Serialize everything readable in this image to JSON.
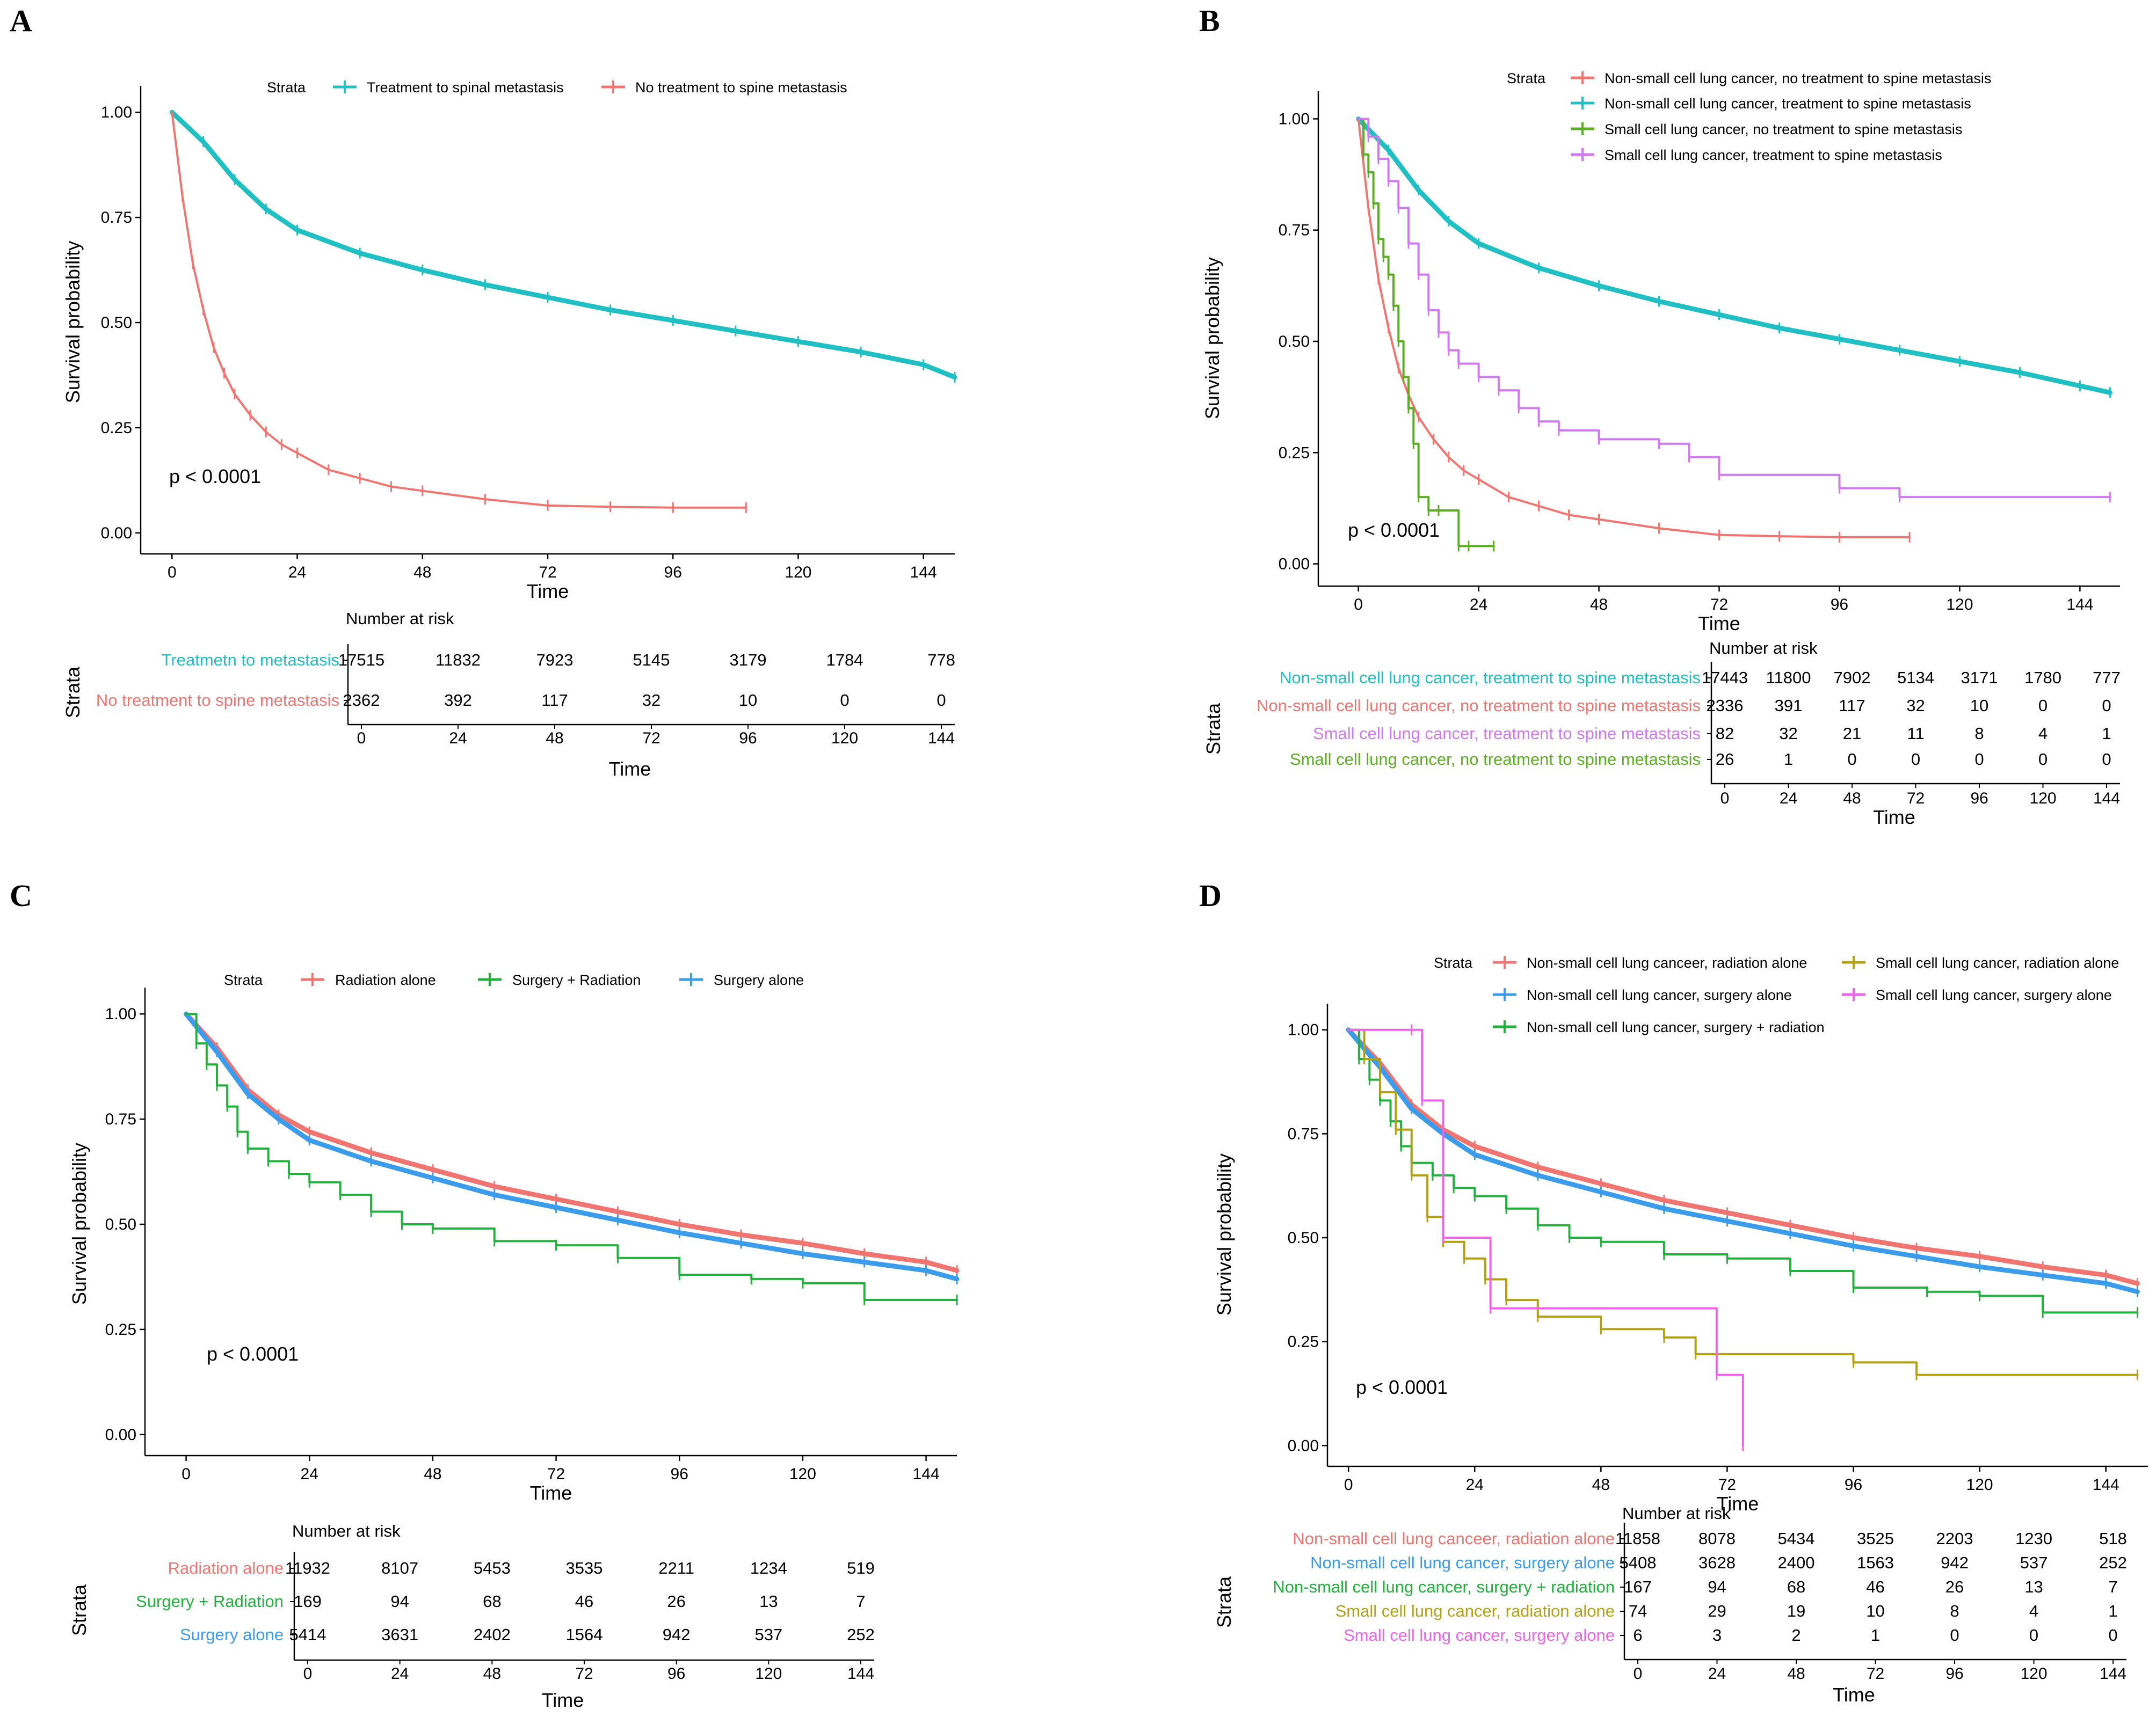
{
  "figure": {
    "description_free": true
  },
  "chart_data": [
    {
      "panel": "A",
      "type": "line",
      "title": "",
      "xlabel": "Time",
      "ylabel": "Survival probability",
      "x_ticks": [
        0,
        24,
        48,
        72,
        96,
        120,
        144
      ],
      "y_ticks": [
        "0.00",
        "0.25",
        "0.50",
        "0.75",
        "1.00"
      ],
      "xlim": [
        -6,
        150
      ],
      "ylim": [
        -0.05,
        1.05
      ],
      "pvalue": "p < 0.0001",
      "legend_title": "Strata",
      "series": [
        {
          "name": "Treatment to spinal metastasis",
          "color": "#1FBFC3",
          "width": 9,
          "x": [
            0,
            6,
            12,
            18,
            24,
            36,
            48,
            60,
            72,
            84,
            96,
            108,
            120,
            132,
            144,
            150
          ],
          "y": [
            1.0,
            0.93,
            0.84,
            0.77,
            0.72,
            0.665,
            0.625,
            0.59,
            0.56,
            0.53,
            0.505,
            0.48,
            0.455,
            0.43,
            0.4,
            0.37
          ]
        },
        {
          "name": "No treatment to spine metastasis",
          "color": "#F07470",
          "width": 4,
          "x": [
            0,
            2,
            4,
            6,
            8,
            10,
            12,
            15,
            18,
            21,
            24,
            30,
            36,
            42,
            48,
            60,
            72,
            84,
            96,
            110
          ],
          "y": [
            1.0,
            0.8,
            0.64,
            0.53,
            0.44,
            0.38,
            0.33,
            0.28,
            0.24,
            0.21,
            0.19,
            0.15,
            0.13,
            0.11,
            0.1,
            0.08,
            0.065,
            0.062,
            0.06,
            0.06
          ]
        }
      ],
      "risk_table": {
        "title": "Number at risk",
        "ylabel": "Strata",
        "xlabel": "Time",
        "rows": [
          {
            "label": "Treatmetn to metastasis",
            "color": "#1FBFC3",
            "values": [
              "17515",
              "11832",
              "7923",
              "5145",
              "3179",
              "1784",
              "778"
            ]
          },
          {
            "label": "No treatment to spine metastasis",
            "color": "#F07470",
            "values": [
              "2362",
              "392",
              "117",
              "32",
              "10",
              "0",
              "0"
            ]
          }
        ]
      }
    },
    {
      "panel": "B",
      "type": "line",
      "title": "",
      "xlabel": "Time",
      "ylabel": "Survival probability",
      "x_ticks": [
        0,
        24,
        48,
        72,
        96,
        120,
        144
      ],
      "y_ticks": [
        "0.00",
        "0.25",
        "0.50",
        "0.75",
        "1.00"
      ],
      "xlim": [
        -8,
        152
      ],
      "ylim": [
        -0.05,
        1.05
      ],
      "pvalue": "p < 0.0001",
      "legend_title": "Strata",
      "series": [
        {
          "name": "Non-small cell lung cancer, no treatment to spine metastasis",
          "color": "#F07470",
          "width": 4,
          "x": [
            0,
            2,
            4,
            6,
            8,
            10,
            12,
            15,
            18,
            21,
            24,
            30,
            36,
            42,
            48,
            60,
            72,
            84,
            96,
            110
          ],
          "y": [
            1.0,
            0.8,
            0.64,
            0.53,
            0.44,
            0.38,
            0.33,
            0.28,
            0.24,
            0.21,
            0.19,
            0.15,
            0.13,
            0.11,
            0.1,
            0.08,
            0.065,
            0.062,
            0.06,
            0.06
          ]
        },
        {
          "name": "Non-small cell lung cancer, treatment to spine metastasis",
          "color": "#1FBFC3",
          "width": 9,
          "x": [
            0,
            6,
            12,
            18,
            24,
            36,
            48,
            60,
            72,
            84,
            96,
            108,
            120,
            132,
            144,
            150
          ],
          "y": [
            1.0,
            0.93,
            0.84,
            0.77,
            0.72,
            0.665,
            0.625,
            0.59,
            0.56,
            0.53,
            0.505,
            0.48,
            0.455,
            0.43,
            0.4,
            0.385
          ]
        },
        {
          "name": "Small cell lung cancer, no treatment to spine metastasis",
          "color": "#5BAE21",
          "width": 4,
          "step": true,
          "x": [
            0,
            1,
            2,
            3,
            4,
            5,
            6,
            7,
            8,
            9,
            10,
            11,
            12,
            14,
            16,
            20,
            22,
            27
          ],
          "y": [
            1.0,
            0.92,
            0.88,
            0.81,
            0.73,
            0.69,
            0.65,
            0.58,
            0.5,
            0.42,
            0.35,
            0.27,
            0.15,
            0.12,
            0.12,
            0.04,
            0.04,
            0.04
          ]
        },
        {
          "name": "Small cell lung cancer, treatment to spine metastasis",
          "color": "#CF78F0",
          "width": 4,
          "step": true,
          "x": [
            0,
            2,
            4,
            6,
            8,
            10,
            12,
            14,
            16,
            18,
            20,
            24,
            28,
            32,
            36,
            40,
            48,
            60,
            66,
            72,
            96,
            108,
            150
          ],
          "y": [
            1.0,
            0.96,
            0.91,
            0.86,
            0.8,
            0.72,
            0.65,
            0.57,
            0.52,
            0.48,
            0.45,
            0.42,
            0.39,
            0.35,
            0.32,
            0.3,
            0.28,
            0.27,
            0.24,
            0.2,
            0.17,
            0.15,
            0.15
          ]
        }
      ],
      "risk_table": {
        "title": "Number at risk",
        "ylabel": "Strata",
        "xlabel": "Time",
        "rows": [
          {
            "label": "Non-small cell lung cancer, treatment to spine metastasis",
            "color": "#1FBFC3",
            "values": [
              "17443",
              "11800",
              "7902",
              "5134",
              "3171",
              "1780",
              "777"
            ]
          },
          {
            "label": "Non-small cell lung cancer, no treatment to spine metastasis",
            "color": "#F07470",
            "values": [
              "2336",
              "391",
              "117",
              "32",
              "10",
              "0",
              "0"
            ]
          },
          {
            "label": "Small cell lung cancer, treatment to spine metastasis",
            "color": "#CF78F0",
            "values": [
              "82",
              "32",
              "21",
              "11",
              "8",
              "4",
              "1"
            ]
          },
          {
            "label": "Small cell lung cancer, no treatment to spine metastasis",
            "color": "#5BAE21",
            "values": [
              "26",
              "1",
              "0",
              "0",
              "0",
              "0",
              "0"
            ]
          }
        ]
      }
    },
    {
      "panel": "C",
      "type": "line",
      "title": "",
      "xlabel": "Time",
      "ylabel": "Survival probability",
      "x_ticks": [
        0,
        24,
        48,
        72,
        96,
        120,
        144
      ],
      "y_ticks": [
        "0.00",
        "0.25",
        "0.50",
        "0.75",
        "1.00"
      ],
      "xlim": [
        -8,
        150
      ],
      "ylim": [
        -0.05,
        1.05
      ],
      "pvalue": "p < 0.0001",
      "legend_title": "Strata",
      "series": [
        {
          "name": "Radiation alone",
          "color": "#F07470",
          "width": 9,
          "x": [
            0,
            6,
            12,
            18,
            24,
            36,
            48,
            60,
            72,
            84,
            96,
            108,
            120,
            132,
            144,
            150
          ],
          "y": [
            1.0,
            0.92,
            0.82,
            0.76,
            0.72,
            0.67,
            0.63,
            0.59,
            0.56,
            0.53,
            0.5,
            0.475,
            0.455,
            0.43,
            0.41,
            0.39
          ]
        },
        {
          "name": "Surgery + Radiation",
          "color": "#20B23C",
          "width": 4,
          "step": true,
          "x": [
            0,
            2,
            4,
            6,
            8,
            10,
            12,
            16,
            20,
            24,
            30,
            36,
            42,
            48,
            60,
            72,
            84,
            96,
            110,
            120,
            132,
            150
          ],
          "y": [
            1.0,
            0.93,
            0.88,
            0.83,
            0.78,
            0.72,
            0.68,
            0.65,
            0.62,
            0.6,
            0.57,
            0.53,
            0.5,
            0.49,
            0.46,
            0.45,
            0.42,
            0.38,
            0.37,
            0.36,
            0.32,
            0.32
          ]
        },
        {
          "name": "Surgery alone",
          "color": "#3C9CEC",
          "width": 9,
          "x": [
            0,
            6,
            12,
            18,
            24,
            36,
            48,
            60,
            72,
            84,
            96,
            108,
            120,
            132,
            144,
            150
          ],
          "y": [
            1.0,
            0.91,
            0.81,
            0.75,
            0.7,
            0.65,
            0.61,
            0.57,
            0.54,
            0.51,
            0.48,
            0.455,
            0.43,
            0.41,
            0.39,
            0.37
          ]
        }
      ],
      "risk_table": {
        "title": "Number at risk",
        "ylabel": "Strata",
        "xlabel": "Time",
        "rows": [
          {
            "label": "Radiation alone",
            "color": "#F07470",
            "values": [
              "11932",
              "8107",
              "5453",
              "3535",
              "2211",
              "1234",
              "519"
            ]
          },
          {
            "label": "Surgery + Radiation",
            "color": "#20B23C",
            "values": [
              "169",
              "94",
              "68",
              "46",
              "26",
              "13",
              "7"
            ]
          },
          {
            "label": "Surgery alone",
            "color": "#3C9CEC",
            "values": [
              "5414",
              "3631",
              "2402",
              "1564",
              "942",
              "537",
              "252"
            ]
          }
        ]
      }
    },
    {
      "panel": "D",
      "type": "line",
      "title": "",
      "xlabel": "Time",
      "ylabel": "Survival probability",
      "x_ticks": [
        0,
        24,
        48,
        72,
        96,
        120,
        144
      ],
      "y_ticks": [
        "0.00",
        "0.25",
        "0.50",
        "0.75",
        "1.00"
      ],
      "xlim": [
        -4,
        152
      ],
      "ylim": [
        -0.05,
        1.05
      ],
      "pvalue": "p < 0.0001",
      "legend_title": "Strata",
      "series": [
        {
          "name": "Non-small cell lung canceer, radiation alone",
          "color": "#F07470",
          "width": 9,
          "x": [
            0,
            6,
            12,
            18,
            24,
            36,
            48,
            60,
            72,
            84,
            96,
            108,
            120,
            132,
            144,
            150
          ],
          "y": [
            1.0,
            0.92,
            0.82,
            0.76,
            0.72,
            0.67,
            0.63,
            0.59,
            0.56,
            0.53,
            0.5,
            0.475,
            0.455,
            0.43,
            0.41,
            0.39
          ]
        },
        {
          "name": "Non-small cell lung cancer, surgery alone",
          "color": "#3C9CEC",
          "width": 9,
          "x": [
            0,
            6,
            12,
            18,
            24,
            36,
            48,
            60,
            72,
            84,
            96,
            108,
            120,
            132,
            144,
            150
          ],
          "y": [
            1.0,
            0.91,
            0.81,
            0.75,
            0.7,
            0.65,
            0.61,
            0.57,
            0.54,
            0.51,
            0.48,
            0.455,
            0.43,
            0.41,
            0.39,
            0.37
          ]
        },
        {
          "name": "Non-small cell lung cancer, surgery + radiation",
          "color": "#20B23C",
          "width": 4,
          "step": true,
          "x": [
            0,
            2,
            4,
            6,
            8,
            10,
            12,
            16,
            20,
            24,
            30,
            36,
            42,
            48,
            60,
            72,
            84,
            96,
            110,
            120,
            132,
            150
          ],
          "y": [
            1.0,
            0.93,
            0.88,
            0.83,
            0.78,
            0.72,
            0.68,
            0.65,
            0.62,
            0.6,
            0.57,
            0.53,
            0.5,
            0.49,
            0.46,
            0.45,
            0.42,
            0.38,
            0.37,
            0.36,
            0.32,
            0.32
          ]
        },
        {
          "name": "Small cell lung cancer, radiation alone",
          "color": "#B3A113",
          "width": 4,
          "step": true,
          "x": [
            0,
            3,
            6,
            9,
            12,
            15,
            18,
            22,
            26,
            30,
            36,
            48,
            60,
            66,
            96,
            108,
            150
          ],
          "y": [
            1.0,
            0.93,
            0.85,
            0.76,
            0.65,
            0.55,
            0.49,
            0.45,
            0.4,
            0.35,
            0.31,
            0.28,
            0.26,
            0.22,
            0.2,
            0.17,
            0.17
          ]
        },
        {
          "name": "Small cell lung cancer, surgery alone",
          "color": "#EE63E9",
          "width": 4,
          "step": true,
          "x": [
            0,
            12,
            14,
            18,
            27,
            70,
            75
          ],
          "y": [
            1.0,
            1.0,
            0.83,
            0.5,
            0.33,
            0.17,
            0.0
          ]
        }
      ],
      "risk_table": {
        "title": "Number at risk",
        "ylabel": "Strata",
        "xlabel": "Time",
        "rows": [
          {
            "label": "Non-small cell lung canceer, radiation alone",
            "color": "#F07470",
            "values": [
              "11858",
              "8078",
              "5434",
              "3525",
              "2203",
              "1230",
              "518"
            ]
          },
          {
            "label": "Non-small cell lung cancer, surgery alone",
            "color": "#3C9CEC",
            "values": [
              "5408",
              "3628",
              "2400",
              "1563",
              "942",
              "537",
              "252"
            ]
          },
          {
            "label": "Non-small cell lung cancer, surgery + radiation",
            "color": "#20B23C",
            "values": [
              "167",
              "94",
              "68",
              "46",
              "26",
              "13",
              "7"
            ]
          },
          {
            "label": "Small cell lung cancer, radiation alone",
            "color": "#B3A113",
            "values": [
              "74",
              "29",
              "19",
              "10",
              "8",
              "4",
              "1"
            ]
          },
          {
            "label": "Small cell lung cancer, surgery alone",
            "color": "#EE63E9",
            "values": [
              "6",
              "3",
              "2",
              "1",
              "0",
              "0",
              "0"
            ]
          }
        ]
      }
    }
  ]
}
